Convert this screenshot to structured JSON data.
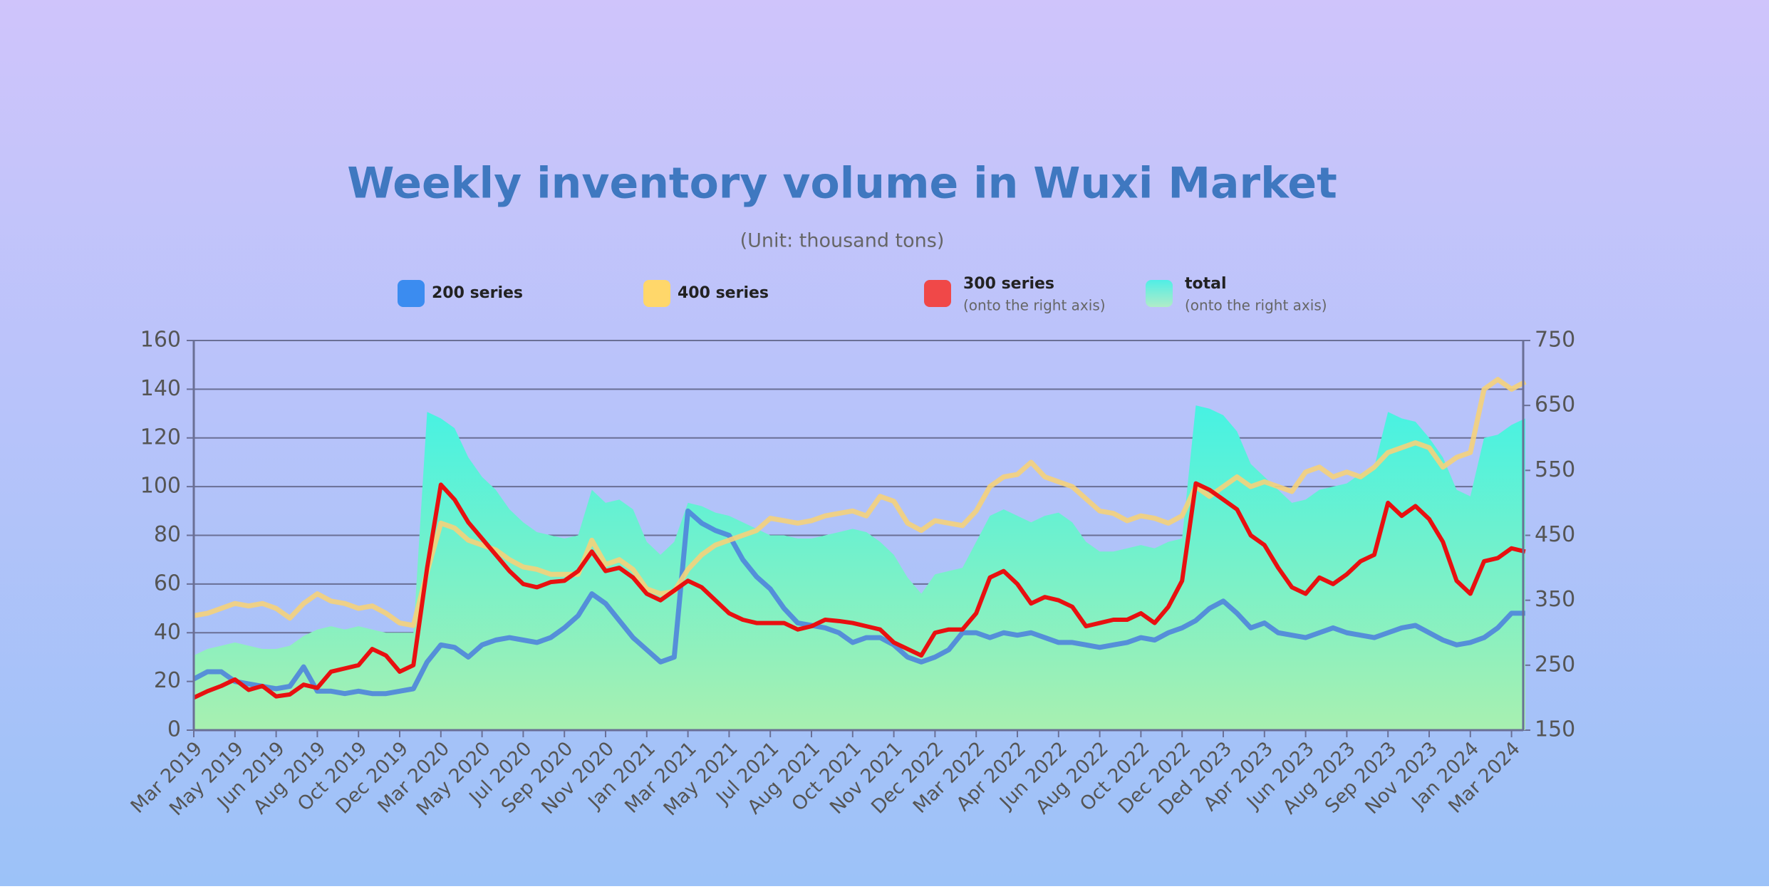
{
  "chart_data": {
    "type": "line",
    "title": "Weekly inventory volume in Wuxi Market",
    "subtitle": "(Unit: thousand tons)",
    "categories": [
      "Mar 2019",
      null,
      null,
      "May 2019",
      null,
      null,
      "Jun 2019",
      null,
      null,
      "Aug 2019",
      null,
      null,
      "Oct 2019",
      null,
      null,
      "Dec 2019",
      null,
      null,
      "Mar 2020",
      null,
      null,
      "May 2020",
      null,
      null,
      "Jul 2020",
      null,
      null,
      "Sep 2020",
      null,
      null,
      "Nov 2020",
      null,
      null,
      "Jan 2021",
      null,
      null,
      "Mar 2021",
      null,
      null,
      "May 2021",
      null,
      null,
      "Jul 2021",
      null,
      null,
      "Aug 2021",
      null,
      null,
      "Oct 2021",
      null,
      null,
      "Nov 2021",
      null,
      null,
      "Dec 2022",
      null,
      null,
      "Mar 2022",
      null,
      null,
      "Apr 2022",
      null,
      null,
      "Jun 2022",
      null,
      null,
      "Aug 2022",
      null,
      null,
      "Oct 2022",
      null,
      null,
      "Dec 2022",
      null,
      null,
      "Ded 2023",
      null,
      null,
      "Apr 2023",
      null,
      null,
      "Jun 2023",
      null,
      null,
      "Aug 2023",
      null,
      null,
      "Sep 2023",
      null,
      null,
      "Nov 2023",
      null,
      null,
      "Jan 2024",
      null,
      null,
      "Mar 2024",
      null
    ],
    "series": [
      {
        "name": "200 series",
        "type": "line",
        "color": "#4f84dc",
        "legend_color": "#3b8cf0",
        "values": [
          21,
          24,
          24,
          20,
          19,
          18,
          17,
          18,
          26,
          16,
          16,
          15,
          16,
          15,
          15,
          16,
          17,
          28,
          35,
          34,
          30,
          35,
          37,
          38,
          37,
          36,
          38,
          42,
          47,
          56,
          52,
          45,
          38,
          33,
          28,
          30,
          90,
          85,
          82,
          80,
          70,
          63,
          58,
          50,
          44,
          43,
          42,
          40,
          36,
          38,
          38,
          35,
          30,
          28,
          30,
          33,
          40,
          40,
          38,
          40,
          39,
          40,
          38,
          36,
          36,
          35,
          34,
          35,
          36,
          38,
          37,
          40,
          42,
          45,
          50,
          53,
          48,
          42,
          44,
          40,
          39,
          38,
          40,
          42,
          40,
          39,
          38,
          40,
          42,
          43,
          40,
          37,
          35,
          36,
          38,
          42,
          48,
          48
        ]
      },
      {
        "name": "400 series",
        "type": "line",
        "color": "#f5d27a",
        "legend_color": "#ffd76a",
        "values": [
          47,
          48,
          50,
          52,
          51,
          52,
          50,
          46,
          52,
          56,
          53,
          52,
          50,
          51,
          48,
          44,
          43,
          65,
          85,
          83,
          78,
          76,
          74,
          70,
          67,
          66,
          64,
          64,
          64,
          78,
          68,
          70,
          66,
          58,
          56,
          57,
          66,
          72,
          76,
          78,
          80,
          82,
          87,
          86,
          85,
          86,
          88,
          89,
          90,
          88,
          96,
          94,
          85,
          82,
          86,
          85,
          84,
          90,
          100,
          104,
          105,
          110,
          104,
          102,
          100,
          95,
          90,
          89,
          86,
          88,
          87,
          85,
          88,
          100,
          96,
          100,
          104,
          100,
          102,
          100,
          98,
          106,
          108,
          104,
          106,
          104,
          108,
          114,
          116,
          118,
          116,
          108,
          112,
          114,
          140,
          144,
          140,
          143
        ]
      },
      {
        "name": "300 series",
        "note": "(onto the right axis)",
        "type": "line",
        "axis": "y2",
        "color": "#e81010",
        "legend_color": "#f04848",
        "values": [
          200,
          210,
          218,
          228,
          212,
          218,
          202,
          205,
          220,
          215,
          240,
          245,
          250,
          275,
          265,
          240,
          250,
          400,
          528,
          505,
          470,
          445,
          420,
          395,
          375,
          370,
          378,
          380,
          395,
          425,
          395,
          400,
          385,
          360,
          350,
          365,
          380,
          370,
          350,
          330,
          320,
          315,
          315,
          315,
          305,
          310,
          320,
          318,
          315,
          310,
          305,
          285,
          275,
          265,
          300,
          305,
          305,
          330,
          385,
          395,
          375,
          345,
          355,
          350,
          340,
          310,
          315,
          320,
          320,
          330,
          315,
          340,
          380,
          530,
          520,
          505,
          490,
          450,
          435,
          400,
          370,
          360,
          385,
          375,
          390,
          410,
          420,
          500,
          480,
          495,
          475,
          440,
          380,
          360,
          410,
          415,
          430,
          425
        ]
      },
      {
        "name": "total",
        "note": "(onto the right axis)",
        "type": "area",
        "axis": "y2",
        "color": "#40f2e6",
        "legend_color": "#6fe8e0",
        "values": [
          265,
          275,
          280,
          285,
          280,
          275,
          275,
          280,
          295,
          305,
          310,
          305,
          310,
          305,
          300,
          300,
          300,
          640,
          630,
          615,
          570,
          540,
          520,
          490,
          470,
          455,
          450,
          445,
          450,
          520,
          500,
          505,
          490,
          440,
          420,
          440,
          500,
          495,
          485,
          480,
          470,
          460,
          450,
          450,
          445,
          445,
          450,
          455,
          460,
          455,
          440,
          420,
          385,
          360,
          390,
          395,
          400,
          440,
          480,
          490,
          480,
          470,
          480,
          485,
          470,
          440,
          425,
          425,
          430,
          435,
          430,
          440,
          445,
          650,
          645,
          635,
          610,
          560,
          540,
          520,
          500,
          505,
          520,
          525,
          530,
          545,
          555,
          640,
          630,
          625,
          600,
          570,
          520,
          510,
          600,
          605,
          620,
          630
        ]
      }
    ],
    "ylim": [
      0,
      160
    ],
    "yticks": [
      0,
      20,
      40,
      60,
      80,
      100,
      120,
      140,
      160
    ],
    "y2lim": [
      150,
      750
    ],
    "y2ticks": [
      150,
      250,
      350,
      450,
      550,
      650,
      750
    ],
    "grid": true
  }
}
